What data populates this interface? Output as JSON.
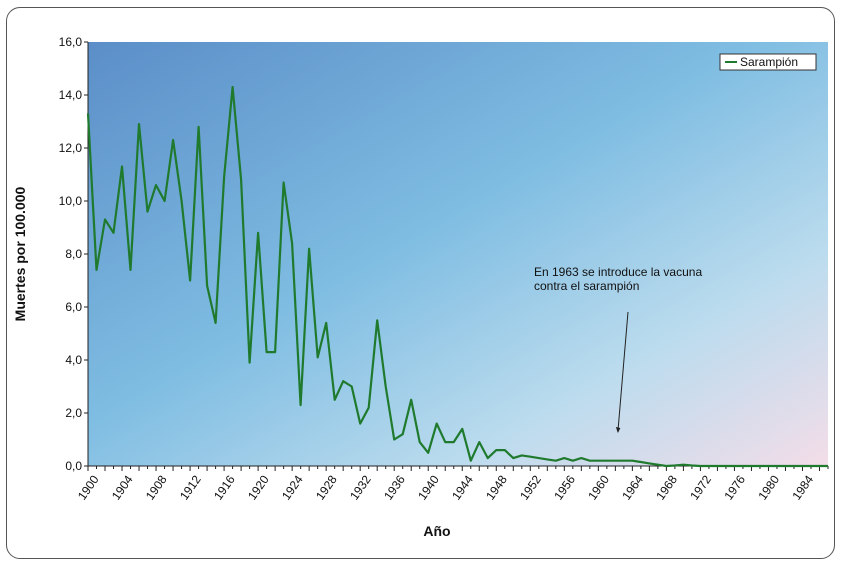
{
  "chart_data": {
    "type": "line",
    "title": "",
    "xlabel": "Año",
    "ylabel": "Muertes por 100.000",
    "ylim": [
      0,
      16
    ],
    "xlim": [
      1900,
      1987
    ],
    "y_ticks": [
      "0,0",
      "2,0",
      "4,0",
      "6,0",
      "8,0",
      "10,0",
      "12,0",
      "14,0",
      "16,0"
    ],
    "x_ticks": [
      "1900",
      "1904",
      "1908",
      "1912",
      "1916",
      "1920",
      "1924",
      "1928",
      "1932",
      "1936",
      "1940",
      "1944",
      "1948",
      "1952",
      "1956",
      "1960",
      "1964",
      "1968",
      "1972",
      "1976",
      "1980",
      "1984"
    ],
    "legend_position": "top-right",
    "grid": false,
    "series": [
      {
        "name": "Sarampión",
        "color": "#1f7a2e",
        "x": [
          1900,
          1901,
          1902,
          1903,
          1904,
          1905,
          1906,
          1907,
          1908,
          1909,
          1910,
          1911,
          1912,
          1913,
          1914,
          1915,
          1916,
          1917,
          1918,
          1919,
          1920,
          1921,
          1922,
          1923,
          1924,
          1925,
          1926,
          1927,
          1928,
          1929,
          1930,
          1931,
          1932,
          1933,
          1934,
          1935,
          1936,
          1937,
          1938,
          1939,
          1940,
          1941,
          1942,
          1943,
          1944,
          1945,
          1946,
          1947,
          1948,
          1949,
          1950,
          1951,
          1952,
          1953,
          1954,
          1955,
          1956,
          1957,
          1958,
          1959,
          1960,
          1961,
          1962,
          1963,
          1964,
          1965,
          1966,
          1967,
          1968,
          1969,
          1970,
          1971,
          1972,
          1973,
          1974,
          1975,
          1976,
          1977,
          1978,
          1979,
          1980,
          1981,
          1982,
          1983,
          1984,
          1985,
          1986,
          1987
        ],
        "values": [
          13.3,
          7.4,
          9.3,
          8.8,
          11.3,
          7.4,
          12.9,
          9.6,
          10.6,
          10.0,
          12.3,
          10.0,
          7.0,
          12.8,
          6.8,
          5.4,
          10.9,
          14.3,
          10.8,
          3.9,
          8.8,
          4.3,
          4.3,
          10.7,
          8.4,
          2.3,
          8.2,
          4.1,
          5.4,
          2.5,
          3.2,
          3.0,
          1.6,
          2.2,
          5.5,
          3.0,
          1.0,
          1.2,
          2.5,
          0.9,
          0.5,
          1.6,
          0.9,
          0.9,
          1.4,
          0.2,
          0.9,
          0.3,
          0.6,
          0.6,
          0.3,
          0.4,
          0.35,
          0.3,
          0.25,
          0.2,
          0.3,
          0.2,
          0.3,
          0.2,
          0.2,
          0.2,
          0.2,
          0.2,
          0.2,
          0.15,
          0.1,
          0.05,
          0.0,
          0.02,
          0.05,
          0.02,
          0.0,
          0.0,
          0.0,
          0.0,
          0.0,
          0.0,
          0.0,
          0.0,
          0.0,
          0.0,
          0.0,
          0.0,
          0.0,
          0.0,
          0.0,
          0.0
        ]
      }
    ],
    "annotations": [
      {
        "text_lines": [
          "En 1963 se introduce la vacuna",
          "contra el sarampión"
        ],
        "arrow_to": [
          1963,
          0.15
        ]
      }
    ]
  }
}
